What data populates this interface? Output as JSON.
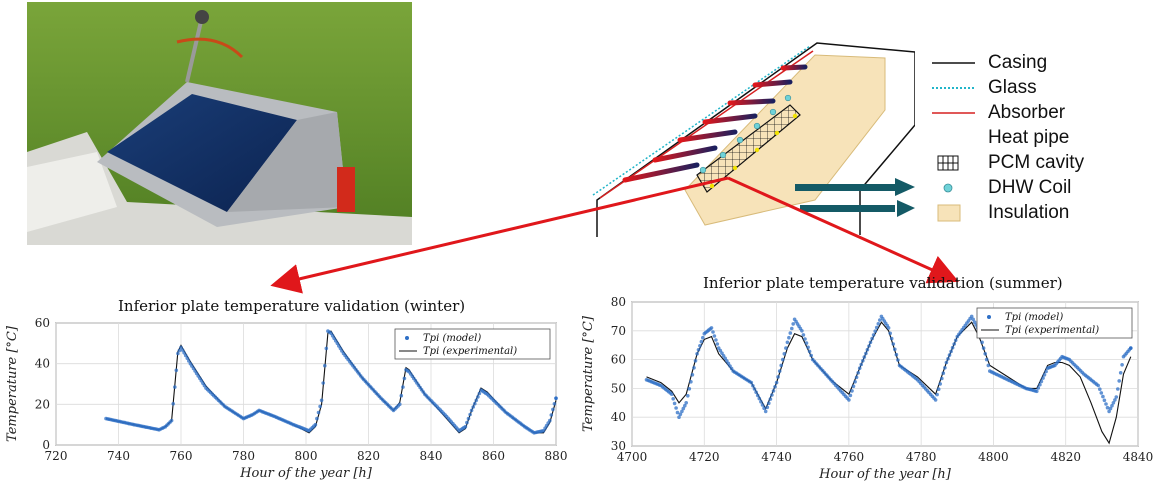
{
  "figure": {
    "photo_label": "solar collector photo",
    "legend": [
      {
        "label": "Casing",
        "icon": "solid-black-line",
        "color": "#111111"
      },
      {
        "label": "Glass",
        "icon": "dotted-cyan-line",
        "color": "#21b5c9"
      },
      {
        "label": "Absorber",
        "icon": "solid-red-line",
        "color": "#d62020"
      },
      {
        "label": "Heat pipe",
        "icon": "red-to-navy-gradient-bar",
        "color": "#c8102e"
      },
      {
        "label": "PCM cavity",
        "icon": "grid-box",
        "color": "#111111"
      },
      {
        "label": "DHW Coil",
        "icon": "cyan-circle",
        "color": "#6fd2d8"
      },
      {
        "label": "Insulation",
        "icon": "beige-rectangle",
        "color": "#f7e3b9"
      }
    ],
    "colors": {
      "arrow_red": "#e0171b",
      "flow_arrow": "#145a66",
      "model_marker": "#2e6fc6",
      "experimental_line": "#111111"
    }
  },
  "chart_data": [
    {
      "type": "line",
      "title": "Inferior plate temperature validation (winter)",
      "xlabel": "Hour of the year [h]",
      "ylabel": "Temperature [°C]",
      "xlim": [
        720,
        880
      ],
      "ylim": [
        0,
        60
      ],
      "xticks": [
        720,
        740,
        760,
        780,
        800,
        820,
        840,
        860,
        880
      ],
      "yticks": [
        0,
        20,
        40,
        60
      ],
      "grid": true,
      "legend_position": "top-right",
      "series": [
        {
          "name": "Tpi (model)",
          "style": "markers",
          "points": [
            [
              736,
              13
            ],
            [
              745,
              10
            ],
            [
              753,
              7.5
            ],
            [
              755,
              9
            ],
            [
              757,
              12
            ],
            [
              759,
              45
            ],
            [
              760,
              48
            ],
            [
              763,
              40
            ],
            [
              768,
              28
            ],
            [
              774,
              19
            ],
            [
              780,
              13
            ],
            [
              783,
              15
            ],
            [
              785,
              17
            ],
            [
              790,
              14
            ],
            [
              796,
              10
            ],
            [
              801,
              7
            ],
            [
              803,
              10
            ],
            [
              805,
              22
            ],
            [
              807,
              56
            ],
            [
              808,
              55
            ],
            [
              812,
              45
            ],
            [
              818,
              33
            ],
            [
              824,
              23
            ],
            [
              828,
              17
            ],
            [
              830,
              20
            ],
            [
              832,
              37
            ],
            [
              833,
              36
            ],
            [
              838,
              25
            ],
            [
              845,
              14
            ],
            [
              849,
              7
            ],
            [
              851,
              9
            ],
            [
              853,
              17
            ],
            [
              856,
              27
            ],
            [
              858,
              25
            ],
            [
              864,
              16
            ],
            [
              870,
              9
            ],
            [
              873,
              6
            ],
            [
              876,
              7
            ],
            [
              878,
              12
            ],
            [
              880,
              23
            ]
          ]
        },
        {
          "name": "Tpi (experimental)",
          "style": "line",
          "points": [
            [
              736,
              13
            ],
            [
              745,
              10
            ],
            [
              753,
              7.5
            ],
            [
              755,
              9
            ],
            [
              757,
              12
            ],
            [
              759,
              46
            ],
            [
              760,
              49
            ],
            [
              763,
              41
            ],
            [
              768,
              29
            ],
            [
              774,
              19
            ],
            [
              780,
              13
            ],
            [
              783,
              15
            ],
            [
              785,
              17
            ],
            [
              790,
              14
            ],
            [
              796,
              10
            ],
            [
              801,
              6
            ],
            [
              803,
              9
            ],
            [
              805,
              20
            ],
            [
              807,
              55
            ],
            [
              808,
              56
            ],
            [
              812,
              46
            ],
            [
              818,
              33
            ],
            [
              824,
              23
            ],
            [
              828,
              17
            ],
            [
              830,
              21
            ],
            [
              832,
              38
            ],
            [
              833,
              37
            ],
            [
              838,
              25
            ],
            [
              845,
              13
            ],
            [
              849,
              6
            ],
            [
              851,
              8
            ],
            [
              853,
              17
            ],
            [
              856,
              28
            ],
            [
              858,
              26
            ],
            [
              864,
              16
            ],
            [
              870,
              9
            ],
            [
              873,
              6
            ],
            [
              876,
              6
            ],
            [
              878,
              11
            ],
            [
              880,
              22
            ]
          ]
        }
      ]
    },
    {
      "type": "line",
      "title": "Inferior plate temperature validation (summer)",
      "xlabel": "Hour of the year [h]",
      "ylabel": "Temperature [°C]",
      "xlim": [
        4700,
        4840
      ],
      "ylim": [
        30,
        80
      ],
      "xticks": [
        4700,
        4720,
        4740,
        4760,
        4780,
        4800,
        4820,
        4840
      ],
      "yticks": [
        30,
        40,
        50,
        60,
        70,
        80
      ],
      "grid": true,
      "legend_position": "top-right",
      "series": [
        {
          "name": "Tpi (model)",
          "style": "markers",
          "points": [
            [
              4704,
              53
            ],
            [
              4708,
              51
            ],
            [
              4711,
              48
            ],
            [
              4713,
              40
            ],
            [
              4715,
              45
            ],
            [
              4718,
              62
            ],
            [
              4720,
              69
            ],
            [
              4722,
              71
            ],
            [
              4724,
              64
            ],
            [
              4728,
              56
            ],
            [
              4733,
              52
            ],
            [
              4737,
              42
            ],
            [
              4740,
              52
            ],
            [
              4743,
              66
            ],
            [
              4745,
              74
            ],
            [
              4747,
              70
            ],
            [
              4750,
              60
            ],
            [
              4755,
              53
            ],
            [
              4760,
              46
            ],
            [
              4763,
              57
            ],
            [
              4766,
              66
            ],
            [
              4769,
              75
            ],
            [
              4771,
              71
            ],
            [
              4774,
              58
            ],
            [
              4779,
              53
            ],
            [
              4784,
              46
            ],
            [
              4787,
              59
            ],
            [
              4790,
              68
            ],
            [
              4794,
              75
            ],
            [
              4796,
              70
            ],
            [
              4799,
              56
            ],
            [
              4804,
              53
            ],
            [
              4809,
              50
            ],
            [
              4812,
              49
            ],
            [
              4815,
              57
            ],
            [
              4817,
              58
            ],
            [
              4819,
              61
            ],
            [
              4821,
              60
            ],
            [
              4825,
              55
            ],
            [
              4829,
              51
            ],
            [
              4832,
              42
            ],
            [
              4834,
              47
            ],
            [
              4836,
              61
            ],
            [
              4838,
              64
            ]
          ]
        },
        {
          "name": "Tpi (experimental)",
          "style": "line",
          "points": [
            [
              4704,
              54
            ],
            [
              4708,
              52
            ],
            [
              4711,
              49
            ],
            [
              4713,
              45
            ],
            [
              4715,
              48
            ],
            [
              4718,
              62
            ],
            [
              4720,
              67
            ],
            [
              4722,
              68
            ],
            [
              4724,
              62
            ],
            [
              4728,
              56
            ],
            [
              4733,
              52
            ],
            [
              4737,
              43
            ],
            [
              4740,
              52
            ],
            [
              4743,
              64
            ],
            [
              4745,
              69
            ],
            [
              4747,
              68
            ],
            [
              4750,
              60
            ],
            [
              4755,
              53
            ],
            [
              4760,
              48
            ],
            [
              4763,
              57
            ],
            [
              4766,
              66
            ],
            [
              4769,
              73
            ],
            [
              4771,
              70
            ],
            [
              4774,
              58
            ],
            [
              4779,
              54
            ],
            [
              4784,
              48
            ],
            [
              4787,
              59
            ],
            [
              4790,
              68
            ],
            [
              4794,
              73
            ],
            [
              4796,
              68
            ],
            [
              4799,
              58
            ],
            [
              4804,
              54
            ],
            [
              4809,
              50
            ],
            [
              4812,
              50
            ],
            [
              4815,
              58
            ],
            [
              4817,
              59
            ],
            [
              4819,
              59
            ],
            [
              4821,
              58
            ],
            [
              4824,
              54
            ],
            [
              4827,
              45
            ],
            [
              4830,
              35
            ],
            [
              4832,
              31
            ],
            [
              4834,
              40
            ],
            [
              4836,
              55
            ],
            [
              4838,
              61
            ]
          ]
        }
      ]
    }
  ]
}
